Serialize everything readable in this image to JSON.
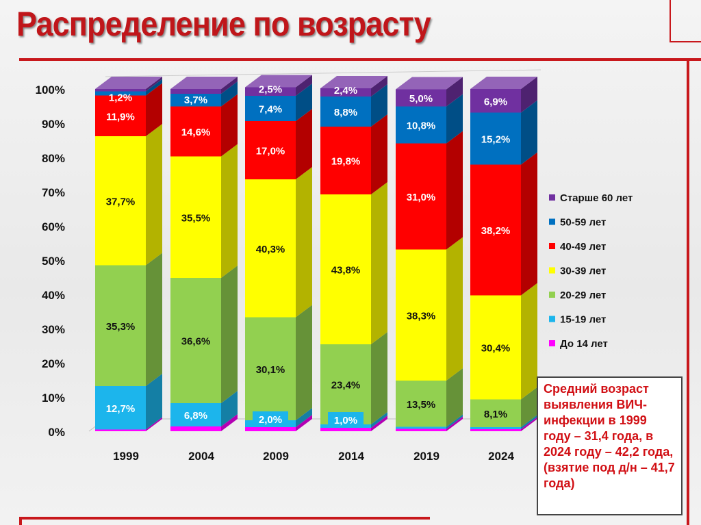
{
  "title": "Распределение по возрасту",
  "note": "Средний возраст выявления ВИЧ-инфекции в 1999 году – 31,4 года, в 2024 году – 42,2 года, (взятие под д/н – 41,7 года)",
  "chart_data": {
    "type": "bar",
    "stacked": true,
    "categories": [
      "1999",
      "2004",
      "2009",
      "2014",
      "2019",
      "2024"
    ],
    "y_tick_labels": [
      "0%",
      "10%",
      "20%",
      "30%",
      "40%",
      "50%",
      "60%",
      "70%",
      "80%",
      "90%",
      "100%"
    ],
    "ylim": [
      0,
      100
    ],
    "legend_position": "right",
    "series": [
      {
        "name": "До 14 лет",
        "color": "#ff00ff",
        "values": [
          0.5,
          1.4,
          1.2,
          1.0,
          0.7,
          0.6
        ],
        "labels": [
          "",
          "",
          "",
          "",
          "",
          ""
        ]
      },
      {
        "name": "15-19 лет",
        "color": "#1cb5ec",
        "values": [
          12.7,
          6.8,
          2.0,
          1.0,
          0.6,
          0.6
        ],
        "labels": [
          "12,7%",
          "6,8%",
          "2,0%",
          "1,0%",
          "",
          ""
        ]
      },
      {
        "name": "20-29 лет",
        "color": "#92d050",
        "values": [
          35.3,
          36.6,
          30.1,
          23.4,
          13.5,
          8.1
        ],
        "labels": [
          "35,3%",
          "36,6%",
          "30,1%",
          "23,4%",
          "13,5%",
          "8,1%"
        ]
      },
      {
        "name": "30-39 лет",
        "color": "#ffff00",
        "values": [
          37.7,
          35.5,
          40.3,
          43.8,
          38.3,
          30.4
        ],
        "labels": [
          "37,7%",
          "35,5%",
          "40,3%",
          "43,8%",
          "38,3%",
          "30,4%"
        ]
      },
      {
        "name": "40-49 лет",
        "color": "#ff0000",
        "values": [
          11.9,
          14.6,
          17.0,
          19.8,
          31.0,
          38.2
        ],
        "labels": [
          "11,9%",
          "14,6%",
          "17,0%",
          "19,8%",
          "31,0%",
          "38,2%"
        ]
      },
      {
        "name": "50-59 лет",
        "color": "#0070c0",
        "values": [
          1.2,
          3.7,
          7.4,
          8.8,
          10.8,
          15.2
        ],
        "labels": [
          "1,2%",
          "3,7%",
          "7,4%",
          "8,8%",
          "10,8%",
          "15,2%"
        ]
      },
      {
        "name": "Старше 60 лет",
        "color": "#7030a0",
        "values": [
          0.7,
          1.4,
          2.5,
          2.4,
          5.0,
          6.9
        ],
        "labels": [
          "",
          "",
          "2,5%",
          "2,4%",
          "5,0%",
          "6,9%"
        ]
      }
    ]
  }
}
